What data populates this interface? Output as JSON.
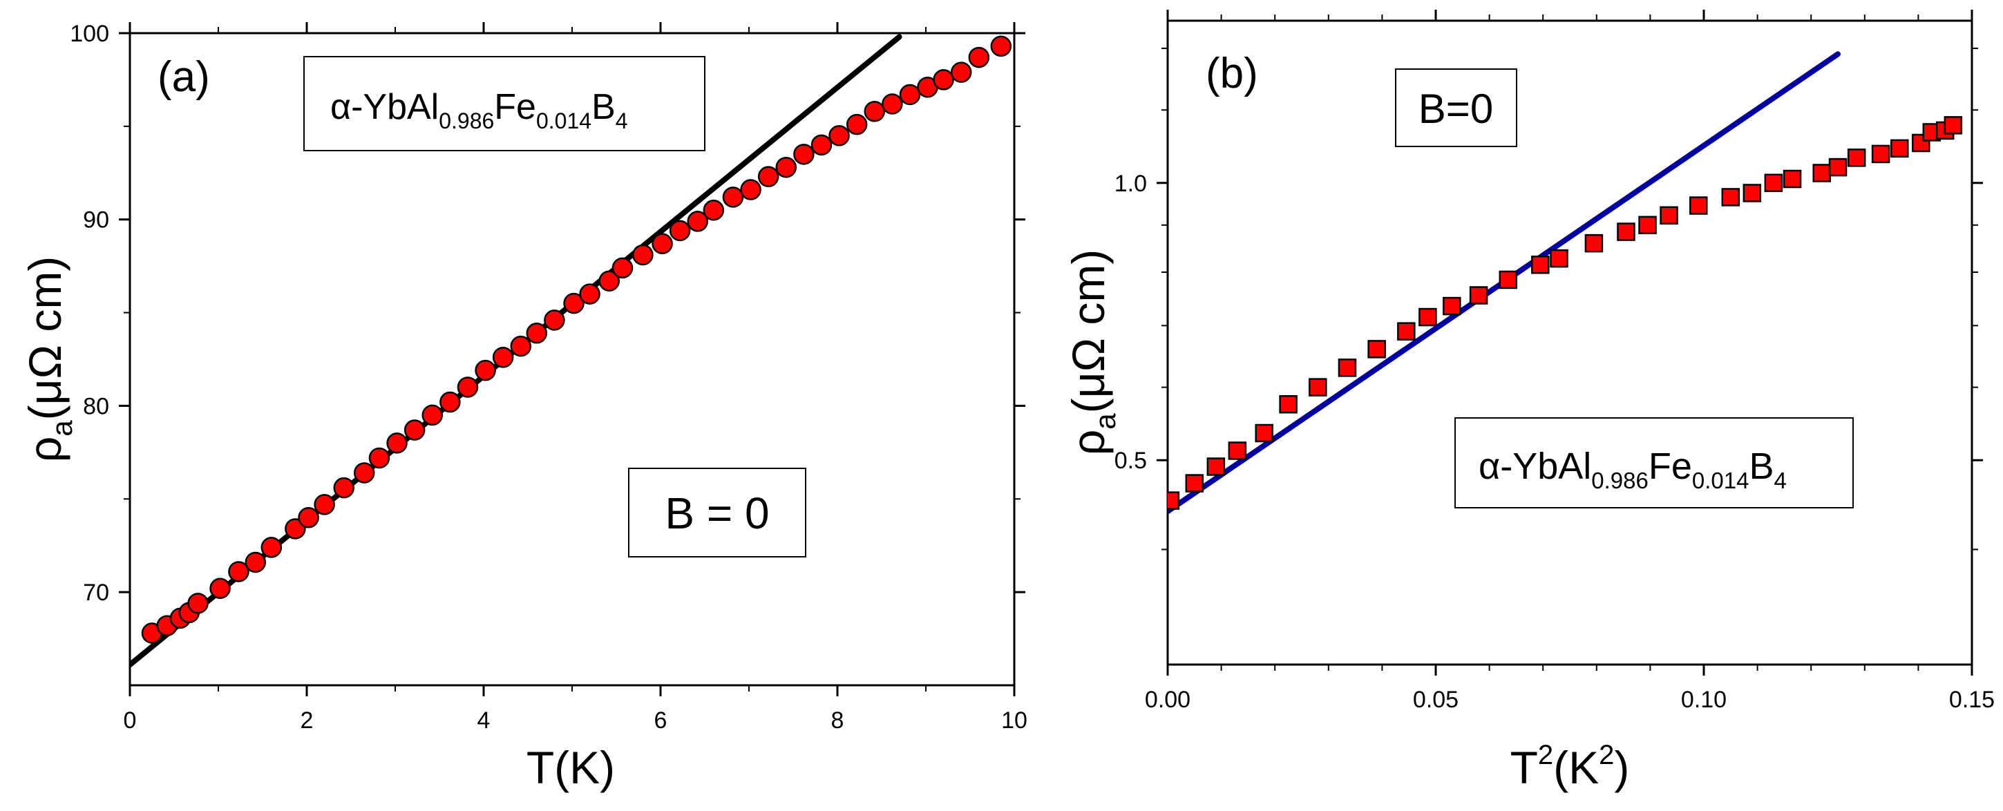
{
  "chart_data": [
    {
      "type": "scatter",
      "panel_label": "(a)",
      "xlabel": "T(K)",
      "ylabel": {
        "main": "ρ",
        "sub": "a",
        "unit": "(μΩ cm)"
      },
      "xlim": [
        0,
        10
      ],
      "ylim": [
        65,
        100
      ],
      "x_ticks": [
        0,
        2,
        4,
        6,
        8,
        10
      ],
      "y_ticks": [
        70,
        80,
        90,
        100
      ],
      "grid": false,
      "annotations": {
        "compound": {
          "prefix": "α-YbAl",
          "sub1": "0.986",
          "mid": "Fe",
          "sub2": "0.014",
          "end": "B",
          "sub3": "4"
        },
        "field": "B = 0"
      },
      "series": [
        {
          "kind": "points",
          "marker": "circle",
          "color": "#ff0000",
          "x": [
            0.25,
            0.42,
            0.57,
            0.67,
            0.77,
            1.02,
            1.23,
            1.42,
            1.6,
            1.87,
            2.02,
            2.2,
            2.42,
            2.65,
            2.82,
            3.02,
            3.22,
            3.42,
            3.62,
            3.82,
            4.02,
            4.22,
            4.42,
            4.6,
            4.8,
            5.02,
            5.2,
            5.42,
            5.57,
            5.8,
            6.02,
            6.22,
            6.42,
            6.6,
            6.82,
            7.02,
            7.22,
            7.42,
            7.62,
            7.82,
            8.02,
            8.22,
            8.42,
            8.62,
            8.82,
            9.02,
            9.2,
            9.4,
            9.6,
            9.85
          ],
          "y": [
            67.8,
            68.2,
            68.6,
            68.9,
            69.4,
            70.2,
            71.1,
            71.6,
            72.4,
            73.4,
            74.0,
            74.7,
            75.6,
            76.4,
            77.2,
            78.0,
            78.7,
            79.5,
            80.2,
            81.0,
            81.9,
            82.6,
            83.2,
            83.9,
            84.6,
            85.5,
            86.0,
            86.7,
            87.4,
            88.1,
            88.7,
            89.4,
            89.9,
            90.5,
            91.2,
            91.6,
            92.3,
            92.8,
            93.5,
            94.0,
            94.5,
            95.1,
            95.8,
            96.2,
            96.7,
            97.1,
            97.5,
            97.9,
            98.7,
            99.3
          ]
        },
        {
          "kind": "fit",
          "color": "#000000",
          "x": [
            0,
            8.7
          ],
          "y": [
            66.1,
            99.8
          ]
        }
      ]
    },
    {
      "type": "scatter",
      "panel_label": "(b)",
      "xlabel": {
        "main": "T",
        "sup": "2",
        "open": "(K",
        "sup2": "2",
        "close": ")"
      },
      "ylabel": {
        "main": "ρ",
        "sub": "a",
        "unit": "(μΩ cm)"
      },
      "scale_y": "log",
      "xlim": [
        0,
        0.15
      ],
      "ylim": [
        0.3,
        1.5
      ],
      "x_ticks": [
        "0.00",
        "0.05",
        "0.10",
        "0.15"
      ],
      "y_ticks": [
        "0.5",
        "1.0"
      ],
      "grid": false,
      "annotations": {
        "compound": {
          "prefix": "α-YbAl",
          "sub1": "0.986",
          "mid": "Fe",
          "sub2": "0.014",
          "end": "B",
          "sub3": "4"
        },
        "field": "B=0"
      },
      "series": [
        {
          "kind": "points",
          "marker": "square",
          "color": "#ff0000",
          "x": [
            0.0005,
            0.005,
            0.009,
            0.013,
            0.018,
            0.0225,
            0.028,
            0.0335,
            0.039,
            0.0445,
            0.0485,
            0.053,
            0.058,
            0.0635,
            0.0695,
            0.073,
            0.0795,
            0.0855,
            0.0895,
            0.0935,
            0.099,
            0.105,
            0.109,
            0.113,
            0.1165,
            0.122,
            0.125,
            0.1285,
            0.133,
            0.1365,
            0.1405,
            0.1425,
            0.145,
            0.1465
          ],
          "y": [
            0.452,
            0.472,
            0.492,
            0.512,
            0.535,
            0.575,
            0.6,
            0.63,
            0.66,
            0.69,
            0.715,
            0.735,
            0.755,
            0.785,
            0.815,
            0.828,
            0.86,
            0.885,
            0.9,
            0.922,
            0.945,
            0.965,
            0.975,
            1.0,
            1.01,
            1.025,
            1.04,
            1.065,
            1.075,
            1.09,
            1.105,
            1.135,
            1.14,
            1.155
          ]
        },
        {
          "kind": "fit",
          "color": "#0000a0",
          "x": [
            0,
            0.125
          ],
          "y": [
            0.44,
            1.38
          ]
        }
      ]
    }
  ]
}
